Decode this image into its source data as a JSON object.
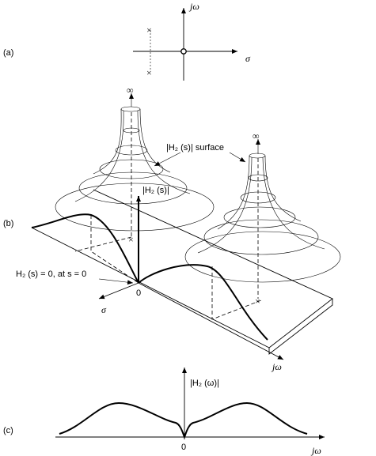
{
  "panel_a": {
    "label": "(a)",
    "axis_x": "σ",
    "axis_y": "jω"
  },
  "panel_b": {
    "label": "(b)",
    "infinity_left": "∞",
    "infinity_right": "∞",
    "surface_label": "|H₂ (s)| surface",
    "magnitude_label": "|H₂ (s)|",
    "zero_note": "H₂ (s) = 0, at s = 0",
    "origin": "0",
    "axis_sigma": "σ",
    "axis_jw": "jω"
  },
  "panel_c": {
    "label": "(c)",
    "magnitude_label": "|H₂ (ω)|",
    "origin": "0",
    "axis_jw": "jω"
  }
}
